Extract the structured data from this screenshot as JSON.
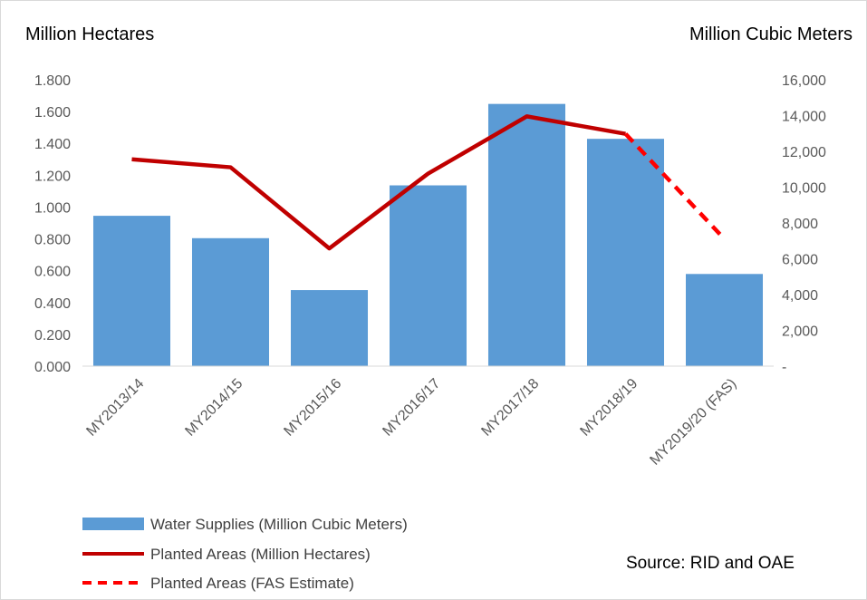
{
  "chart_data": {
    "type": "bar",
    "left_axis_title": "Million Hectares",
    "right_axis_title": "Million Cubic Meters",
    "source": "Source: RID and OAE",
    "categories": [
      "MY2013/14",
      "MY2014/15",
      "MY2015/16",
      "MY2016/17",
      "MY2017/18",
      "MY2018/19",
      "MY2019/20 (FAS)"
    ],
    "left_axis": {
      "min": 0,
      "max": 1.8,
      "ticks": [
        "0.000",
        "0.200",
        "0.400",
        "0.600",
        "0.800",
        "1.000",
        "1.200",
        "1.400",
        "1.600",
        "1.800"
      ]
    },
    "right_axis": {
      "min": 0,
      "max": 16000,
      "ticks": [
        "-",
        "2,000",
        "4,000",
        "6,000",
        "8,000",
        "10,000",
        "12,000",
        "14,000",
        "16,000"
      ]
    },
    "series": [
      {
        "name": "Water Supplies (Million Cubic Meters)",
        "kind": "bar",
        "axis": "right",
        "color": "#5b9bd5",
        "values": [
          8400,
          7150,
          4250,
          10100,
          14650,
          12700,
          5150
        ]
      },
      {
        "name": "Planted Areas (Million Hectares)",
        "kind": "line",
        "axis": "left",
        "color": "#c00000",
        "values": [
          1.3,
          1.25,
          0.74,
          1.21,
          1.57,
          1.46,
          null
        ]
      },
      {
        "name": "Planted Areas (FAS Estimate)",
        "kind": "dashed-line",
        "axis": "left",
        "color": "#ff0000",
        "values": [
          null,
          null,
          null,
          null,
          null,
          1.46,
          0.8
        ]
      }
    ],
    "grid": false,
    "legend_position": "bottom-left"
  }
}
